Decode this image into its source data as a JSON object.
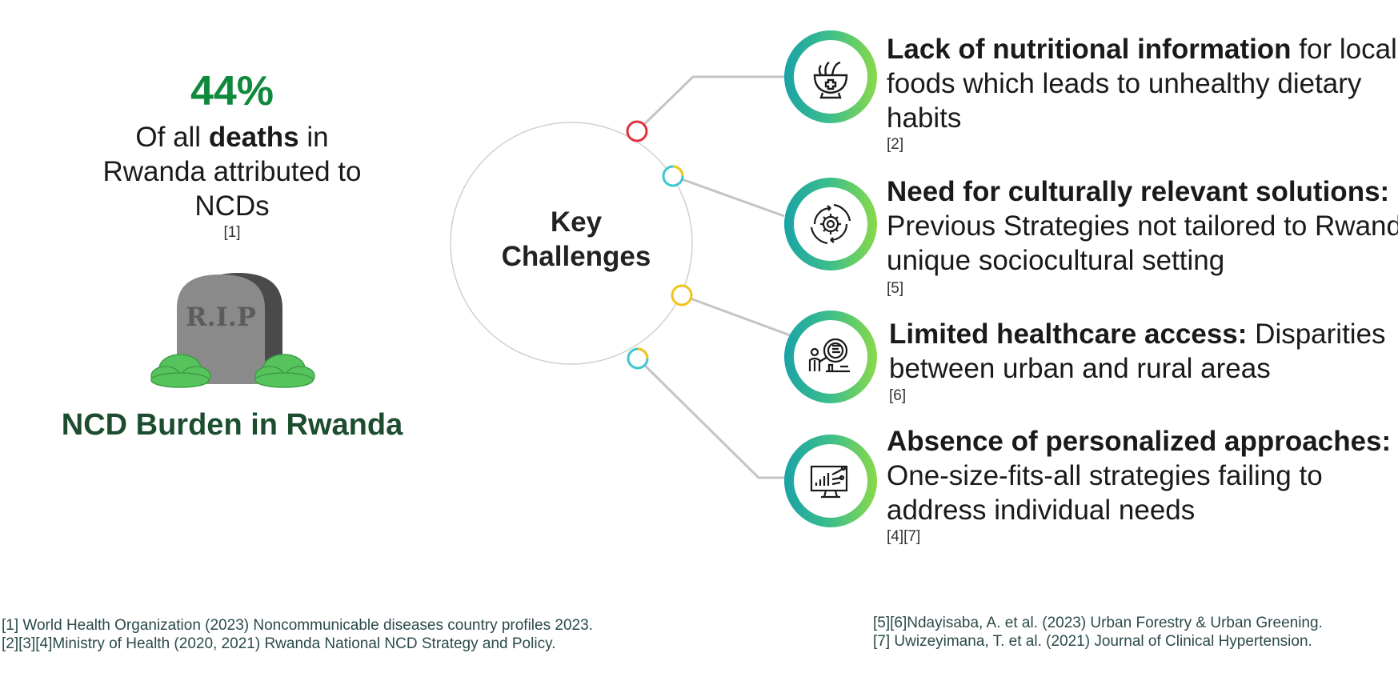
{
  "left": {
    "stat_value": "44%",
    "stat_text_pre": "Of all ",
    "stat_text_bold": "deaths",
    "stat_text_mid": " in",
    "stat_text_line2": "Rwanda attributed to",
    "stat_text_line3": "NCDs",
    "stat_ref": "[1]",
    "tombstone_text": "R.I.P",
    "title": "NCD Burden in Rwanda"
  },
  "center": {
    "line1": "Key",
    "line2": "Challenges"
  },
  "challenges": [
    {
      "icon": "mortar-pestle-medicine-icon",
      "bold": "Lack of nutritional information",
      "text_first": " for local",
      "line2": "foods which leads to unhealthy dietary",
      "line3": "habits",
      "ref": "[2]",
      "node_color": "#e0303a"
    },
    {
      "icon": "gear-cycle-icon",
      "bold": "Need for culturally relevant solutions:",
      "text_first": "",
      "line2": "Previous Strategies not tailored to Rwanda's",
      "line3": "unique sociocultural setting",
      "ref": "[5]",
      "node_color": "#3ec6d0"
    },
    {
      "icon": "healthcare-access-icon",
      "bold": "Limited healthcare access:",
      "text_first": " Disparities",
      "line2": "between urban and rural areas",
      "line3": "",
      "ref": "[6]",
      "node_color": "#f2c31b"
    },
    {
      "icon": "analytics-monitor-icon",
      "bold": "Absence of personalized approaches:",
      "text_first": "",
      "line2": "One-size-fits-all strategies failing to",
      "line3": "address individual needs",
      "ref": "[4][7]",
      "node_color": "#3ec6d0"
    }
  ],
  "footer": {
    "left_line1": "[1] World Health Organization (2023) Noncommunicable diseases country profiles 2023.",
    "left_line2": "[2][3][4]Ministry of Health (2020, 2021) Rwanda National NCD Strategy and Policy.",
    "right_line1": "[5][6]Ndayisaba, A. et al. (2023) Urban Forestry & Urban Greening.",
    "right_line2": "[7] Uwizeyimana, T. et al. (2021) Journal of Clinical Hypertension."
  },
  "colors": {
    "accent_green": "#0f8a3c",
    "title_green": "#1b4d2e",
    "ring_start": "#19a3a6",
    "ring_end": "#8ad94a"
  }
}
